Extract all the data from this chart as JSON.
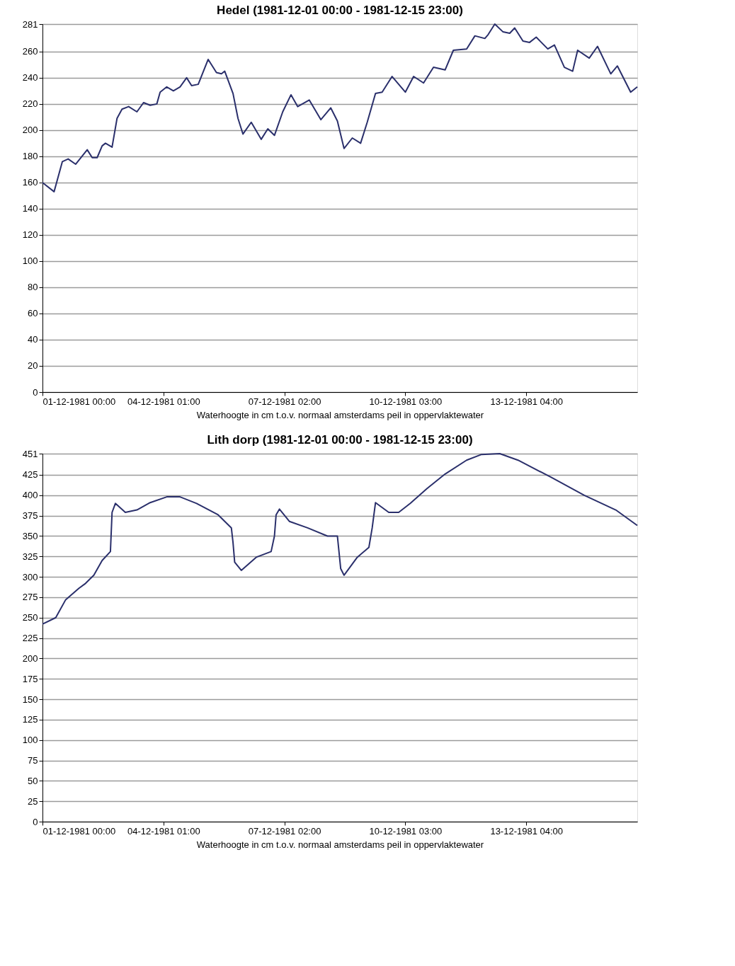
{
  "chart_data": [
    {
      "type": "line",
      "title": "Hedel (1981-12-01 00:00 - 1981-12-15 23:00)",
      "xlabel": "Waterhoogte in cm t.o.v. normaal amsterdams peil in oppervlaktewater",
      "xlim": [
        "1981-12-01T00:00",
        "1981-12-15T23:00"
      ],
      "ylim": [
        0,
        281
      ],
      "xticks": [
        {
          "value": "1981-12-01T00:00",
          "label": "01-12-1981 00:00"
        },
        {
          "value": "1981-12-04T01:00",
          "label": "04-12-1981 01:00"
        },
        {
          "value": "1981-12-07T02:00",
          "label": "07-12-1981 02:00"
        },
        {
          "value": "1981-12-10T03:00",
          "label": "10-12-1981 03:00"
        },
        {
          "value": "1981-12-13T04:00",
          "label": "13-12-1981 04:00"
        }
      ],
      "yticks": [
        0,
        20,
        40,
        60,
        80,
        100,
        120,
        140,
        160,
        180,
        200,
        220,
        240,
        260,
        281
      ],
      "grid": "y",
      "line_style": "solid",
      "series": [
        {
          "color": "#2a2f6b",
          "x": [
            "1981-12-01T00:00",
            "1981-12-01T07:00",
            "1981-12-01T12:00",
            "1981-12-01T15:30",
            "1981-12-01T20:00",
            "1981-12-02T03:00",
            "1981-12-02T06:00",
            "1981-12-02T09:00",
            "1981-12-02T12:00",
            "1981-12-02T14:00",
            "1981-12-02T18:00",
            "1981-12-02T21:00",
            "1981-12-03T00:00",
            "1981-12-03T04:00",
            "1981-12-03T09:00",
            "1981-12-03T13:00",
            "1981-12-03T17:00",
            "1981-12-03T21:00",
            "1981-12-03T23:00",
            "1981-12-04T03:00",
            "1981-12-04T07:00",
            "1981-12-04T11:00",
            "1981-12-04T15:00",
            "1981-12-04T18:00",
            "1981-12-04T22:00",
            "1981-12-05T04:00",
            "1981-12-05T09:00",
            "1981-12-05T12:00",
            "1981-12-05T14:00",
            "1981-12-05T19:00",
            "1981-12-05T22:00",
            "1981-12-06T01:00",
            "1981-12-06T06:00",
            "1981-12-06T12:00",
            "1981-12-06T16:00",
            "1981-12-06T20:00",
            "1981-12-07T01:00",
            "1981-12-07T06:00",
            "1981-12-07T10:00",
            "1981-12-07T17:00",
            "1981-12-08T00:00",
            "1981-12-08T06:00",
            "1981-12-08T10:00",
            "1981-12-08T14:00",
            "1981-12-08T19:00",
            "1981-12-09T00:00",
            "1981-12-09T04:00",
            "1981-12-09T09:00",
            "1981-12-09T13:00",
            "1981-12-09T19:00",
            "1981-12-10T03:00",
            "1981-12-10T08:00",
            "1981-12-10T14:00",
            "1981-12-10T20:00",
            "1981-12-11T03:00",
            "1981-12-11T08:00",
            "1981-12-11T16:00",
            "1981-12-11T21:00",
            "1981-12-12T03:00",
            "1981-12-12T05:00",
            "1981-12-12T09:00",
            "1981-12-12T14:00",
            "1981-12-12T18:00",
            "1981-12-12T21:00",
            "1981-12-13T02:00",
            "1981-12-13T06:00",
            "1981-12-13T10:00",
            "1981-12-13T17:00",
            "1981-12-13T21:00",
            "1981-12-14T03:00",
            "1981-12-14T08:00",
            "1981-12-14T11:00",
            "1981-12-14T18:00",
            "1981-12-14T23:00",
            "1981-12-15T07:00",
            "1981-12-15T11:00",
            "1981-12-15T19:00",
            "1981-12-15T23:00"
          ],
          "values": [
            160,
            153,
            176,
            178,
            174,
            185,
            179,
            179,
            188,
            190,
            187,
            209,
            216,
            218,
            214,
            221,
            219,
            220,
            229,
            233,
            230,
            233,
            240,
            234,
            235,
            254,
            244,
            243,
            245,
            228,
            209,
            197,
            206,
            193,
            201,
            196,
            214,
            227,
            218,
            223,
            208,
            217,
            207,
            186,
            194,
            190,
            206,
            228,
            229,
            241,
            229,
            241,
            236,
            248,
            246,
            261,
            262,
            272,
            270,
            273,
            281,
            275,
            274,
            278,
            268,
            267,
            271,
            262,
            265,
            248,
            245,
            261,
            255,
            264,
            243,
            249,
            229,
            233
          ]
        }
      ]
    },
    {
      "type": "line",
      "title": "Lith dorp (1981-12-01 00:00 - 1981-12-15 23:00)",
      "xlabel": "Waterhoogte in cm t.o.v. normaal amsterdams peil in oppervlaktewater",
      "xlim": [
        "1981-12-01T00:00",
        "1981-12-15T23:00"
      ],
      "ylim": [
        0,
        451
      ],
      "xticks": [
        {
          "value": "1981-12-01T00:00",
          "label": "01-12-1981 00:00"
        },
        {
          "value": "1981-12-04T01:00",
          "label": "04-12-1981 01:00"
        },
        {
          "value": "1981-12-07T02:00",
          "label": "07-12-1981 02:00"
        },
        {
          "value": "1981-12-10T03:00",
          "label": "10-12-1981 03:00"
        },
        {
          "value": "1981-12-13T04:00",
          "label": "13-12-1981 04:00"
        }
      ],
      "yticks": [
        0,
        25,
        50,
        75,
        100,
        125,
        150,
        175,
        200,
        225,
        250,
        275,
        300,
        325,
        350,
        375,
        400,
        425,
        451
      ],
      "grid": "y",
      "line_style": "solid",
      "series": [
        {
          "color": "#2a2f6b",
          "x": [
            "1981-12-01T00:00",
            "1981-12-01T08:00",
            "1981-12-01T14:00",
            "1981-12-01T22:00",
            "1981-12-02T02:00",
            "1981-12-02T07:00",
            "1981-12-02T12:00",
            "1981-12-02T17:00",
            "1981-12-02T18:00",
            "1981-12-02T20:00",
            "1981-12-03T02:00",
            "1981-12-03T09:00",
            "1981-12-03T17:00",
            "1981-12-04T03:00",
            "1981-12-04T11:00",
            "1981-12-04T21:00",
            "1981-12-05T10:00",
            "1981-12-05T18:00",
            "1981-12-05T19:00",
            "1981-12-05T20:00",
            "1981-12-06T00:00",
            "1981-12-06T09:00",
            "1981-12-06T18:00",
            "1981-12-06T20:00",
            "1981-12-06T21:00",
            "1981-12-06T23:00",
            "1981-12-07T05:00",
            "1981-12-07T16:00",
            "1981-12-08T04:00",
            "1981-12-08T10:00",
            "1981-12-08T12:00",
            "1981-12-08T14:00",
            "1981-12-08T22:00",
            "1981-12-09T05:00",
            "1981-12-09T07:00",
            "1981-12-09T09:00",
            "1981-12-09T17:00",
            "1981-12-09T23:00",
            "1981-12-10T06:00",
            "1981-12-10T16:00",
            "1981-12-11T03:00",
            "1981-12-11T16:00",
            "1981-12-12T01:00",
            "1981-12-12T12:00",
            "1981-12-12T23:00",
            "1981-12-13T19:00",
            "1981-12-14T15:00",
            "1981-12-15T10:00",
            "1981-12-15T23:00"
          ],
          "values": [
            242,
            250,
            272,
            286,
            292,
            302,
            320,
            331,
            379,
            390,
            379,
            382,
            391,
            398,
            398,
            390,
            376,
            360,
            342,
            318,
            308,
            324,
            331,
            350,
            376,
            383,
            368,
            360,
            350,
            350,
            310,
            302,
            324,
            336,
            360,
            391,
            379,
            379,
            390,
            408,
            426,
            443,
            450,
            451,
            443,
            422,
            400,
            382,
            363
          ]
        }
      ]
    }
  ]
}
